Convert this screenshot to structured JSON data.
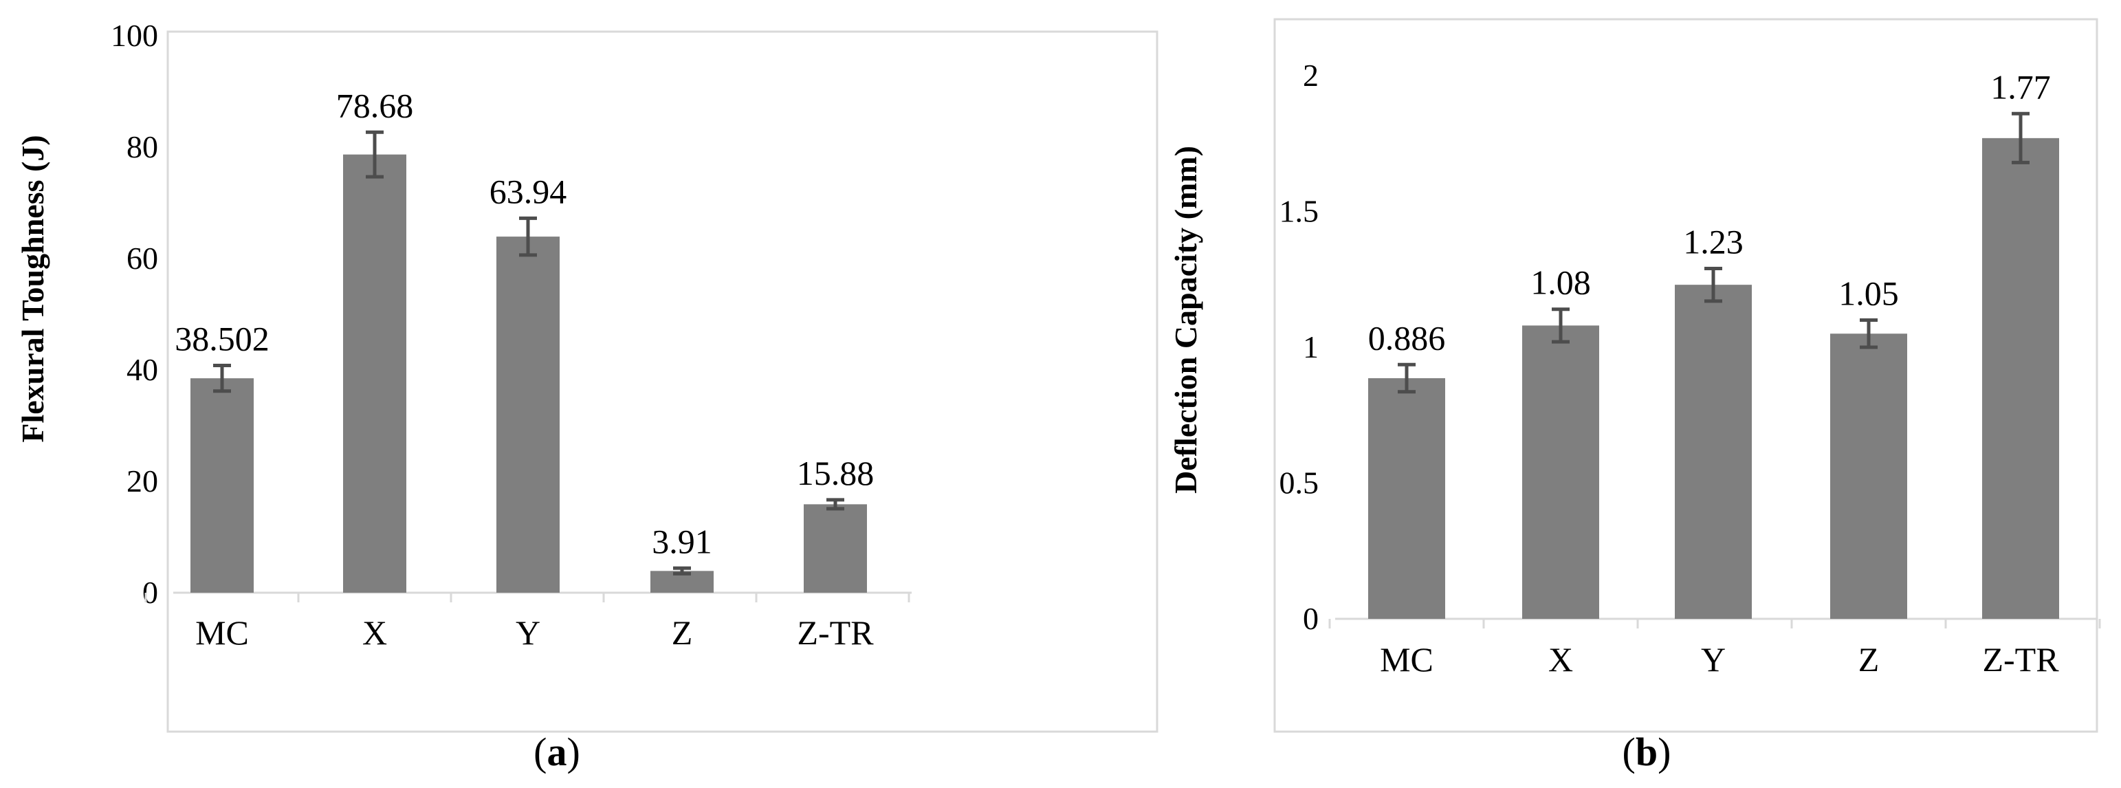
{
  "colors": {
    "bar": "#7f7f7f",
    "error_bar": "#4d4d4d",
    "axis": "#d9d9d9",
    "text": "#000000"
  },
  "chart_data": [
    {
      "type": "bar",
      "panel_label": "(a)",
      "panel_letter": "a",
      "ylabel": "Flexural Toughness (J)",
      "xlabel": "",
      "categories": [
        "MC",
        "X",
        "Y",
        "Z",
        "Z-TR"
      ],
      "values": [
        38.502,
        78.68,
        63.94,
        3.91,
        15.88
      ],
      "data_labels": [
        "38.502",
        "78.68",
        "63.94",
        "3.91",
        "15.88"
      ],
      "error": [
        2.3,
        4.0,
        3.3,
        0.5,
        0.8
      ],
      "ylim": [
        0,
        100
      ],
      "yticks": [
        0,
        20,
        40,
        60,
        80,
        100
      ],
      "ytick_labels": [
        "0",
        "20",
        "40",
        "60",
        "80",
        "100"
      ],
      "grid": false,
      "legend": "none"
    },
    {
      "type": "bar",
      "panel_label": "(b)",
      "panel_letter": "b",
      "ylabel": "Deflection Capacity (mm)",
      "xlabel": "",
      "categories": [
        "MC",
        "X",
        "Y",
        "Z",
        "Z-TR"
      ],
      "values": [
        0.886,
        1.08,
        1.23,
        1.05,
        1.77
      ],
      "data_labels": [
        "0.886",
        "1.08",
        "1.23",
        "1.05",
        "1.77"
      ],
      "error": [
        0.05,
        0.06,
        0.06,
        0.05,
        0.09
      ],
      "ylim": [
        0,
        2
      ],
      "yticks": [
        0,
        0.5,
        1,
        1.5,
        2
      ],
      "ytick_labels": [
        "0",
        "0.5",
        "1",
        "1.5",
        "2"
      ],
      "grid": false,
      "legend": "none"
    }
  ]
}
